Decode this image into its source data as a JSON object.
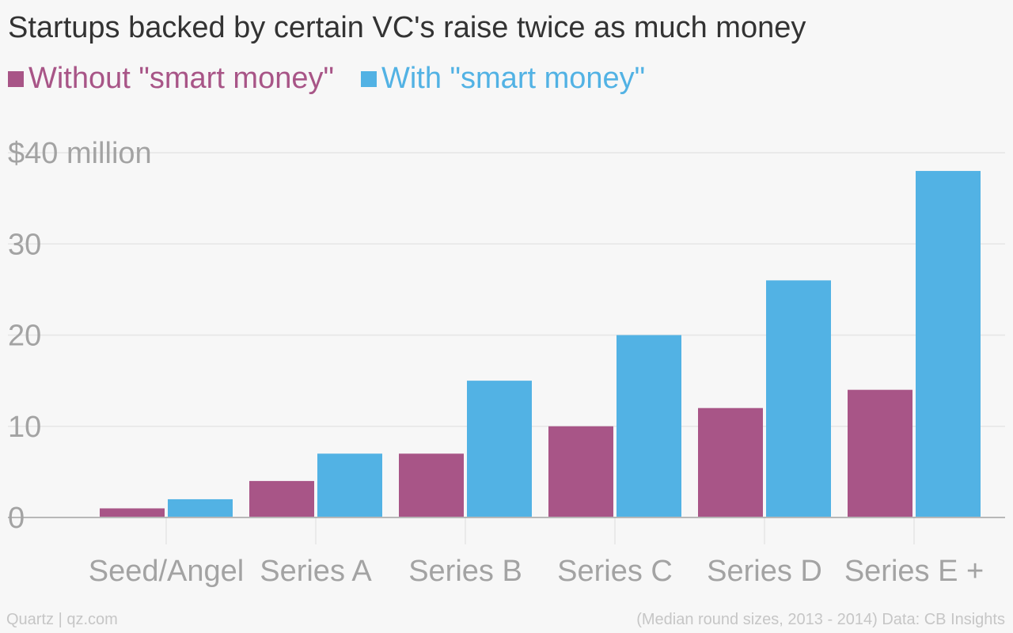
{
  "header": {
    "title": "Startups backed by certain VC's raise twice as much money"
  },
  "legend": [
    {
      "label": "Without \"smart money\"",
      "color": "#a85587"
    },
    {
      "label": "With \"smart money\"",
      "color": "#52b2e4"
    }
  ],
  "footer": {
    "source_left": "Quartz | qz.com",
    "source_right": "(Median round sizes, 2013 - 2014) Data: CB Insights"
  },
  "chart_data": {
    "type": "bar",
    "categories": [
      "Seed/Angel",
      "Series A",
      "Series B",
      "Series C",
      "Series D",
      "Series E +"
    ],
    "series": [
      {
        "name": "Without \"smart money\"",
        "color": "#a85587",
        "values": [
          1,
          4,
          7,
          10,
          12,
          14
        ]
      },
      {
        "name": "With \"smart money\"",
        "color": "#52b2e4",
        "values": [
          2,
          7,
          15,
          20,
          26,
          38
        ]
      }
    ],
    "y_ticks": [
      {
        "value": 0,
        "label": "0"
      },
      {
        "value": 10,
        "label": "10"
      },
      {
        "value": 20,
        "label": "20"
      },
      {
        "value": 30,
        "label": "30"
      },
      {
        "value": 40,
        "label": "$40 million"
      }
    ],
    "ylim": [
      0,
      40
    ],
    "grid": true,
    "legend_position": "top-left",
    "colors": {
      "grid": "#e6e6e6",
      "axis": "#b8b8b8",
      "tick_label": "#a3a3a3"
    }
  }
}
